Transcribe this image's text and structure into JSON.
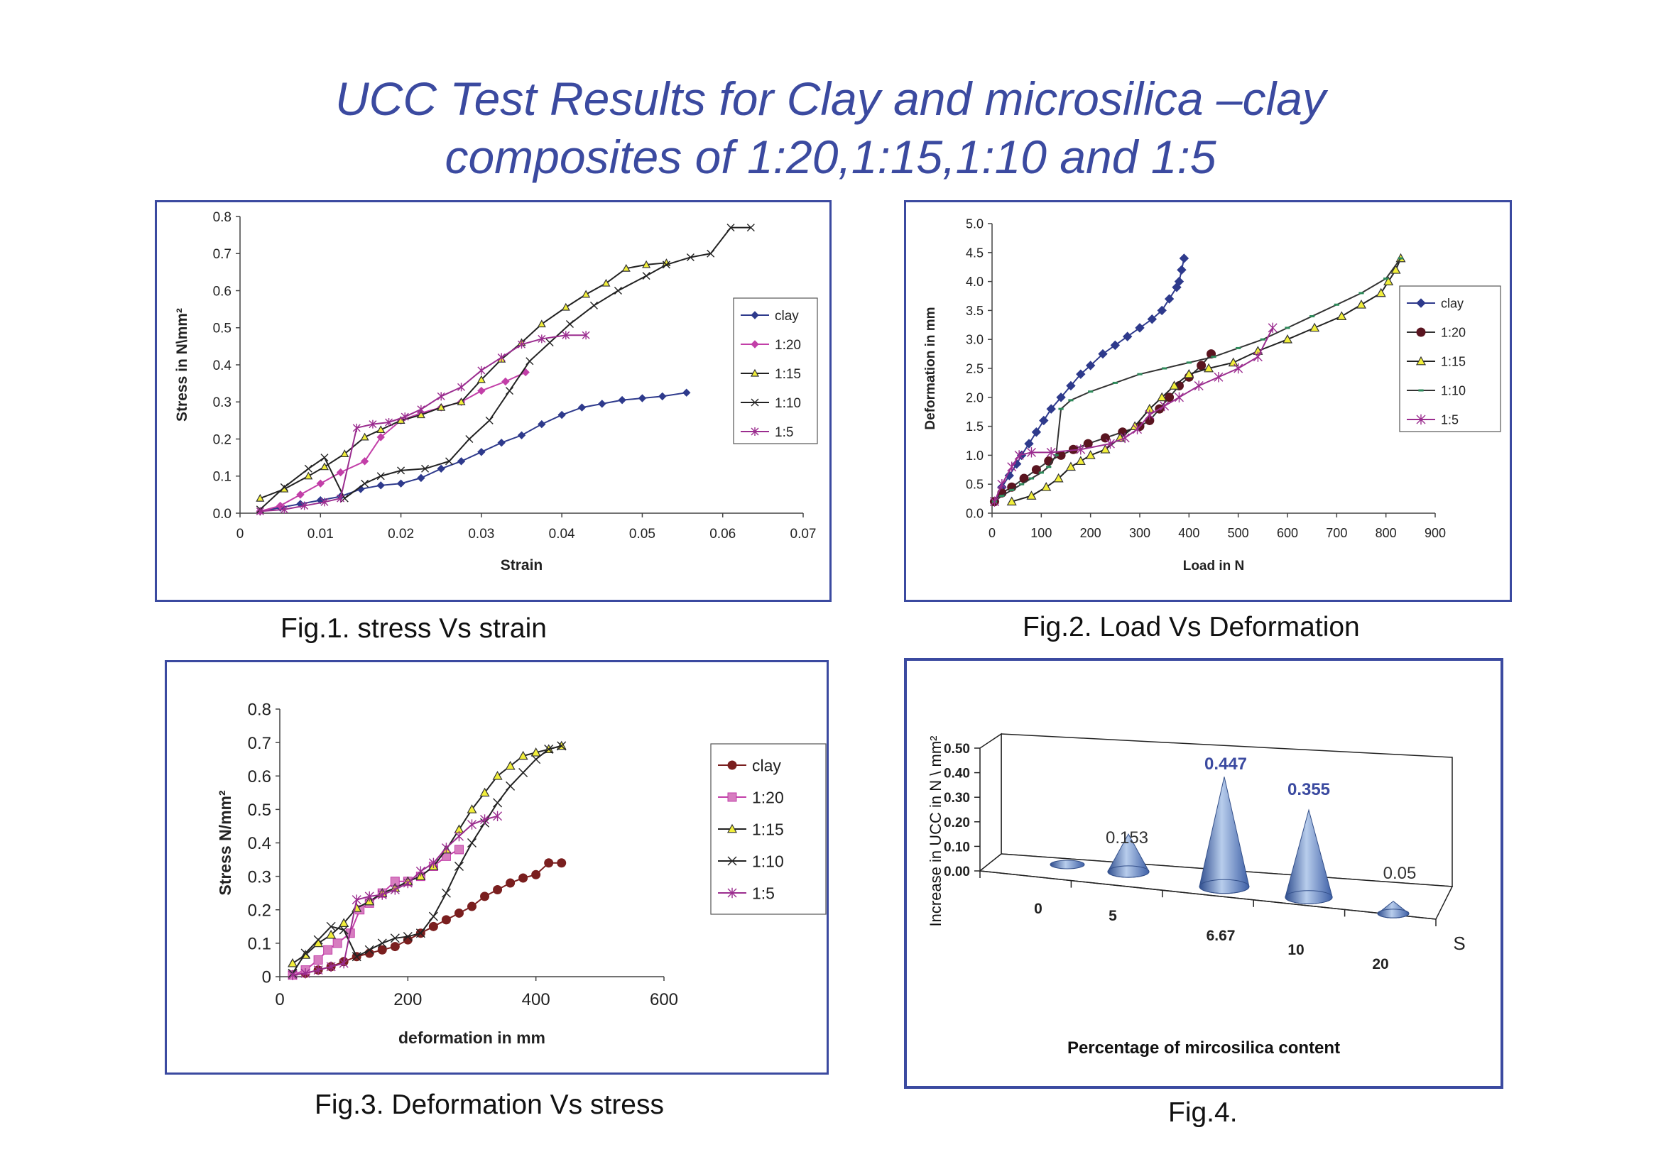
{
  "title": {
    "line1": "UCC Test Results for Clay and  microsilica –clay",
    "line2": "composites of 1:20,1:15,1:10 and 1:5"
  },
  "captions": {
    "fig1": "Fig.1. stress Vs strain",
    "fig2": "Fig.2. Load Vs Deformation",
    "fig3": "Fig.3. Deformation  Vs stress",
    "fig4": "Fig.4."
  },
  "colors": {
    "clay": "#2e3a8c",
    "clay_fig3": "#7a1f1f",
    "r1_20": "#c23fa8",
    "r1_15": "#222222",
    "r1_15_marker": "#f2ef3a",
    "r1_10": "#222222",
    "r1_10_fig2": "#2d8a5a",
    "r1_5": "#9b2d8f",
    "accent": "#3b4aa0",
    "cone": "#8aa6d6"
  },
  "chart_data": [
    {
      "type": "line",
      "title": "",
      "xlabel": "Strain",
      "ylabel": "Stress in N\\mm²",
      "xlim": [
        0,
        0.07
      ],
      "ylim": [
        0,
        0.8
      ],
      "xticks": [
        "0",
        "0.01",
        "0.02",
        "0.03",
        "0.04",
        "0.05",
        "0.06",
        "0.07"
      ],
      "yticks": [
        "0.0",
        "0.1",
        "0.2",
        "0.3",
        "0.4",
        "0.5",
        "0.6",
        "0.7",
        "0.8"
      ],
      "legend": "right",
      "series": [
        {
          "name": "clay",
          "marker": "diamond",
          "x": [
            0.0025,
            0.005,
            0.0075,
            0.01,
            0.0125,
            0.015,
            0.0175,
            0.02,
            0.0225,
            0.025,
            0.0275,
            0.03,
            0.0325,
            0.035,
            0.0375,
            0.04,
            0.0425,
            0.045,
            0.0475,
            0.05,
            0.0525,
            0.0555
          ],
          "y": [
            0.005,
            0.015,
            0.025,
            0.035,
            0.045,
            0.065,
            0.075,
            0.08,
            0.095,
            0.12,
            0.14,
            0.165,
            0.19,
            0.21,
            0.24,
            0.265,
            0.285,
            0.295,
            0.305,
            0.31,
            0.315,
            0.325
          ]
        },
        {
          "name": "1:20",
          "marker": "diamond",
          "x": [
            0.0025,
            0.005,
            0.0075,
            0.01,
            0.0125,
            0.0155,
            0.0175,
            0.02,
            0.0225,
            0.025,
            0.0275,
            0.03,
            0.033,
            0.0355
          ],
          "y": [
            0.005,
            0.02,
            0.05,
            0.08,
            0.11,
            0.14,
            0.205,
            0.25,
            0.27,
            0.285,
            0.3,
            0.33,
            0.355,
            0.38
          ]
        },
        {
          "name": "1:15",
          "marker": "triangle",
          "x": [
            0.0025,
            0.0055,
            0.0085,
            0.0105,
            0.013,
            0.0155,
            0.0175,
            0.02,
            0.0225,
            0.025,
            0.0275,
            0.03,
            0.0325,
            0.035,
            0.0375,
            0.0405,
            0.043,
            0.0455,
            0.048,
            0.0505,
            0.053
          ],
          "y": [
            0.04,
            0.065,
            0.1,
            0.125,
            0.16,
            0.205,
            0.225,
            0.25,
            0.265,
            0.285,
            0.3,
            0.36,
            0.415,
            0.46,
            0.51,
            0.555,
            0.59,
            0.62,
            0.66,
            0.67,
            0.675
          ]
        },
        {
          "name": "1:10",
          "marker": "x",
          "x": [
            0.0025,
            0.0055,
            0.0085,
            0.0105,
            0.013,
            0.0155,
            0.0175,
            0.02,
            0.023,
            0.026,
            0.0285,
            0.031,
            0.0335,
            0.036,
            0.0385,
            0.041,
            0.044,
            0.047,
            0.0505,
            0.053,
            0.056,
            0.0585,
            0.061,
            0.0635
          ],
          "y": [
            0.01,
            0.07,
            0.12,
            0.15,
            0.04,
            0.08,
            0.1,
            0.115,
            0.12,
            0.14,
            0.2,
            0.25,
            0.33,
            0.41,
            0.46,
            0.51,
            0.56,
            0.6,
            0.64,
            0.67,
            0.69,
            0.7,
            0.77,
            0.77
          ]
        },
        {
          "name": "1:5",
          "marker": "star",
          "x": [
            0.0025,
            0.0055,
            0.008,
            0.0105,
            0.0125,
            0.0145,
            0.0165,
            0.0185,
            0.0205,
            0.0225,
            0.025,
            0.0275,
            0.03,
            0.0325,
            0.035,
            0.0375,
            0.0405,
            0.043
          ],
          "y": [
            0.005,
            0.01,
            0.02,
            0.03,
            0.04,
            0.23,
            0.24,
            0.245,
            0.26,
            0.28,
            0.315,
            0.34,
            0.385,
            0.42,
            0.455,
            0.47,
            0.48,
            0.48
          ]
        }
      ]
    },
    {
      "type": "line",
      "title": "",
      "xlabel": "Load in N",
      "ylabel": "Deformation in mm",
      "xlim": [
        0,
        900
      ],
      "ylim": [
        0,
        5
      ],
      "xticks": [
        "0",
        "100",
        "200",
        "300",
        "400",
        "500",
        "600",
        "700",
        "800",
        "900"
      ],
      "yticks": [
        "0.0",
        "0.5",
        "1.0",
        "1.5",
        "2.0",
        "2.5",
        "3.0",
        "3.5",
        "4.0",
        "4.5",
        "5.0"
      ],
      "legend": "right",
      "series": [
        {
          "name": "clay",
          "marker": "diamond",
          "x": [
            5,
            20,
            35,
            50,
            60,
            75,
            90,
            105,
            120,
            140,
            160,
            180,
            200,
            225,
            250,
            275,
            300,
            325,
            345,
            360,
            375,
            380,
            385,
            390
          ],
          "y": [
            0.2,
            0.45,
            0.65,
            0.85,
            1.0,
            1.2,
            1.4,
            1.6,
            1.8,
            2.0,
            2.2,
            2.4,
            2.55,
            2.75,
            2.9,
            3.05,
            3.2,
            3.35,
            3.5,
            3.7,
            3.9,
            4.0,
            4.2,
            4.4
          ]
        },
        {
          "name": "1:20",
          "marker": "circle",
          "x": [
            5,
            20,
            40,
            65,
            90,
            115,
            140,
            165,
            195,
            230,
            265,
            300,
            320,
            340,
            360,
            380,
            400,
            425,
            445
          ],
          "y": [
            0.2,
            0.35,
            0.45,
            0.6,
            0.75,
            0.9,
            1.0,
            1.1,
            1.2,
            1.3,
            1.4,
            1.5,
            1.6,
            1.8,
            2.0,
            2.2,
            2.35,
            2.55,
            2.75
          ]
        },
        {
          "name": "1:15",
          "marker": "triangle",
          "x": [
            40,
            80,
            110,
            135,
            160,
            180,
            200,
            230,
            260,
            290,
            320,
            345,
            370,
            400,
            440,
            490,
            540,
            600,
            655,
            710,
            750,
            790,
            805,
            820,
            830
          ],
          "y": [
            0.2,
            0.3,
            0.45,
            0.6,
            0.8,
            0.9,
            1.0,
            1.1,
            1.3,
            1.5,
            1.8,
            2.0,
            2.2,
            2.4,
            2.5,
            2.6,
            2.8,
            3.0,
            3.2,
            3.4,
            3.6,
            3.8,
            4.0,
            4.2,
            4.4
          ]
        },
        {
          "name": "1:10",
          "marker": "dash",
          "x": [
            5,
            20,
            40,
            60,
            80,
            100,
            115,
            130,
            140,
            160,
            200,
            250,
            300,
            350,
            400,
            450,
            500,
            550,
            600,
            650,
            700,
            750,
            800,
            830
          ],
          "y": [
            0.2,
            0.3,
            0.4,
            0.5,
            0.6,
            0.7,
            0.8,
            1.0,
            1.8,
            1.95,
            2.1,
            2.25,
            2.4,
            2.5,
            2.6,
            2.7,
            2.85,
            3.0,
            3.2,
            3.4,
            3.6,
            3.8,
            4.05,
            4.4
          ]
        },
        {
          "name": "1:5",
          "marker": "star",
          "x": [
            5,
            20,
            40,
            55,
            80,
            120,
            180,
            240,
            270,
            295,
            320,
            350,
            380,
            420,
            460,
            500,
            540,
            570
          ],
          "y": [
            0.2,
            0.5,
            0.8,
            1.0,
            1.05,
            1.05,
            1.1,
            1.2,
            1.3,
            1.45,
            1.7,
            1.85,
            2.0,
            2.2,
            2.35,
            2.5,
            2.7,
            3.2
          ]
        }
      ]
    },
    {
      "type": "line",
      "title": "",
      "xlabel": "deformation in mm",
      "ylabel": "Stress N/mm²",
      "xlim": [
        0,
        600
      ],
      "ylim": [
        0,
        0.8
      ],
      "xticks": [
        "0",
        "200",
        "400",
        "600"
      ],
      "yticks": [
        "0",
        "0.1",
        "0.2",
        "0.3",
        "0.4",
        "0.5",
        "0.6",
        "0.7",
        "0.8"
      ],
      "legend": "right",
      "series": [
        {
          "name": "clay",
          "marker": "circle",
          "x": [
            20,
            40,
            60,
            80,
            100,
            120,
            140,
            160,
            180,
            200,
            220,
            240,
            260,
            280,
            300,
            320,
            340,
            360,
            380,
            400,
            420,
            440
          ],
          "y": [
            0.005,
            0.01,
            0.02,
            0.03,
            0.045,
            0.06,
            0.07,
            0.08,
            0.09,
            0.11,
            0.13,
            0.15,
            0.17,
            0.19,
            0.21,
            0.24,
            0.26,
            0.28,
            0.295,
            0.305,
            0.34,
            0.34
          ]
        },
        {
          "name": "1:20",
          "marker": "square",
          "x": [
            20,
            40,
            60,
            75,
            90,
            110,
            125,
            140,
            160,
            180,
            200,
            220,
            240,
            260,
            280
          ],
          "y": [
            0.005,
            0.02,
            0.05,
            0.08,
            0.1,
            0.13,
            0.2,
            0.22,
            0.25,
            0.285,
            0.285,
            0.3,
            0.33,
            0.36,
            0.38
          ]
        },
        {
          "name": "1:15",
          "marker": "triangle",
          "x": [
            20,
            40,
            60,
            80,
            100,
            120,
            140,
            160,
            180,
            200,
            220,
            240,
            260,
            280,
            300,
            320,
            340,
            360,
            380,
            400,
            420,
            440
          ],
          "y": [
            0.04,
            0.065,
            0.1,
            0.125,
            0.16,
            0.205,
            0.225,
            0.25,
            0.265,
            0.285,
            0.3,
            0.33,
            0.38,
            0.44,
            0.5,
            0.55,
            0.6,
            0.63,
            0.66,
            0.67,
            0.68,
            0.69
          ]
        },
        {
          "name": "1:10",
          "marker": "x",
          "x": [
            20,
            40,
            60,
            80,
            100,
            120,
            140,
            160,
            180,
            200,
            220,
            240,
            260,
            280,
            300,
            320,
            340,
            360,
            380,
            400,
            420,
            440
          ],
          "y": [
            0.01,
            0.07,
            0.11,
            0.15,
            0.14,
            0.06,
            0.08,
            0.1,
            0.115,
            0.12,
            0.13,
            0.18,
            0.25,
            0.33,
            0.4,
            0.46,
            0.52,
            0.57,
            0.61,
            0.65,
            0.68,
            0.69
          ]
        },
        {
          "name": "1:5",
          "marker": "star",
          "x": [
            20,
            40,
            60,
            80,
            100,
            120,
            140,
            160,
            180,
            200,
            220,
            240,
            260,
            280,
            300,
            320,
            340
          ],
          "y": [
            0.005,
            0.01,
            0.02,
            0.03,
            0.04,
            0.23,
            0.24,
            0.245,
            0.26,
            0.28,
            0.315,
            0.34,
            0.385,
            0.42,
            0.455,
            0.47,
            0.48
          ]
        }
      ]
    },
    {
      "type": "bar",
      "style": "3d-cone",
      "title": "",
      "xlabel": "Percentage of mircosilica content",
      "ylabel": "Increase in UCC  in  N \\ mm²",
      "zlabel": "S",
      "ylim": [
        0,
        0.5
      ],
      "yticks": [
        "0.00",
        "0.10",
        "0.20",
        "0.30",
        "0.40",
        "0.50"
      ],
      "categories": [
        "0",
        "5",
        "6.67",
        "10",
        "20"
      ],
      "values": [
        0,
        0.153,
        0.447,
        0.355,
        0.05
      ],
      "data_labels": [
        "",
        "0.153",
        "0.447",
        "0.355",
        "0.05"
      ],
      "highlighted_labels": [
        "0.447",
        "0.355"
      ]
    }
  ]
}
